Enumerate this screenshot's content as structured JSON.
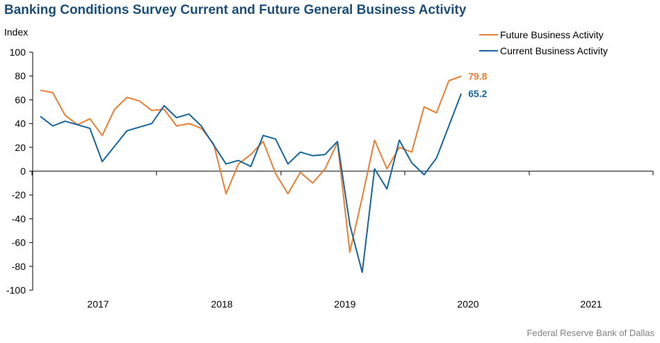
{
  "chart_data": {
    "type": "line",
    "title": "Banking Conditions Survey Current and Future General Business Activity",
    "ylabel": "Index",
    "ylim": [
      -100,
      100
    ],
    "yticks": [
      100,
      80,
      60,
      40,
      20,
      0,
      -20,
      -40,
      -60,
      -80,
      -100
    ],
    "year_labels": [
      "2017",
      "2018",
      "2019",
      "2020",
      "2021"
    ],
    "x_start": "2016-Q3",
    "grid": false,
    "legend_position": "top-right",
    "series": [
      {
        "name": "Future Business Activity",
        "color": "#ed7d31",
        "end_label": "79.8",
        "values": [
          68,
          66,
          47,
          39,
          44,
          30,
          52,
          62,
          59,
          51,
          52,
          38,
          40,
          36,
          23,
          -19,
          6,
          14,
          25,
          -2,
          -19,
          -1,
          -10,
          2,
          24,
          -68,
          -22,
          26,
          2,
          20,
          16,
          54,
          49,
          76,
          79.8
        ]
      },
      {
        "name": "Current Business Activity",
        "color": "#1565a0",
        "end_label": "65.2",
        "values": [
          46,
          38,
          42,
          39,
          36,
          8,
          21,
          34,
          37,
          40,
          55,
          45,
          48,
          38,
          22,
          6,
          9,
          4,
          30,
          27,
          6,
          16,
          13,
          14,
          25,
          -45,
          -85,
          2,
          -15,
          26,
          7,
          -3,
          11,
          38,
          65.2
        ]
      }
    ]
  },
  "source": "Federal Reserve Bank of Dallas"
}
